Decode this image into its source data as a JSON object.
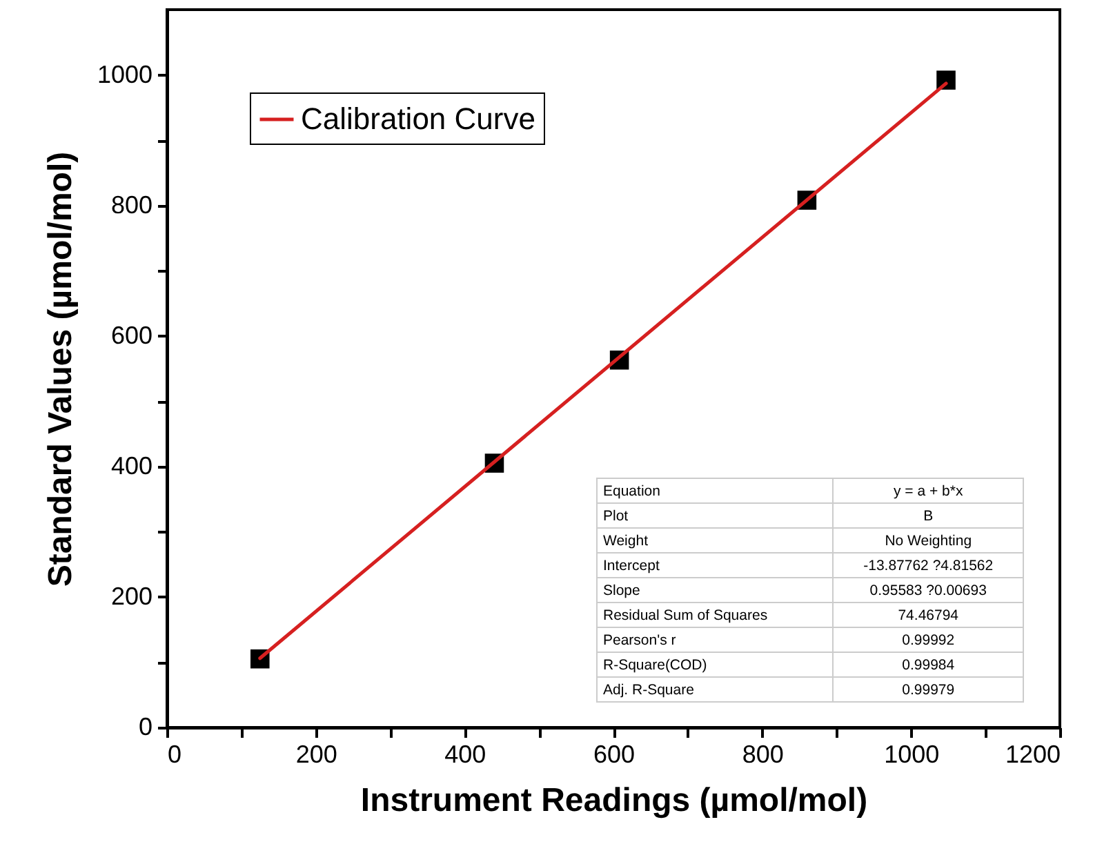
{
  "chart_data": {
    "type": "scatter",
    "xlabel": "Instrument Readings (µmol/mol)",
    "ylabel": "Standard Values (µmol/mol)",
    "xlim": [
      0,
      1200
    ],
    "ylim": [
      0,
      1100
    ],
    "xticks": [
      0,
      {
        "value": 100,
        "label": null
      },
      200,
      {
        "value": 300,
        "label": null
      },
      400,
      {
        "value": 500,
        "label": null
      },
      600,
      {
        "value": 700,
        "label": null
      },
      800,
      {
        "value": 900,
        "label": null
      },
      1000,
      {
        "value": 1100,
        "label": null
      },
      1200
    ],
    "yticks": [
      0,
      {
        "value": 100,
        "label": null
      },
      200,
      {
        "value": 300,
        "label": null
      },
      400,
      {
        "value": 500,
        "label": null
      },
      600,
      {
        "value": 700,
        "label": null
      },
      800,
      {
        "value": 900,
        "label": null
      },
      1000
    ],
    "grid": false,
    "legend": "top left",
    "series": [
      {
        "color": "#000000",
        "marker": "square",
        "x": [
          125,
          440,
          608,
          860,
          1047
        ],
        "values": [
          105,
          405,
          563,
          808,
          992
        ]
      },
      {
        "type": "line",
        "name": "Calibration Curve",
        "color": "#d62020",
        "marker": "none",
        "x": [
          125,
          1047
        ],
        "values": [
          106,
          987
        ]
      }
    ],
    "annotations": [
      "Equation",
      "y = a + b*x",
      "Plot",
      "B",
      "Weight",
      "No Weighting",
      "Intercept",
      "-13.87762 ?4.81562",
      "Slope",
      "0.95583 ?0.00693",
      "Residual Sum of Squares",
      "74.46794",
      "Pearson's r",
      "0.99992",
      "R-Square(COD)",
      "0.99984",
      "Adj. R-Square",
      "0.99979"
    ]
  }
}
